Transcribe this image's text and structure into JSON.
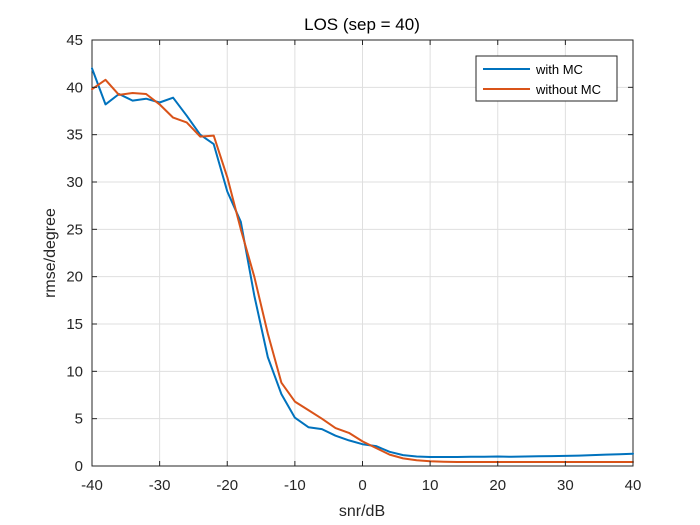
{
  "chart_data": {
    "type": "line",
    "title": "LOS (sep = 40)",
    "xlabel": "snr/dB",
    "ylabel": "rmse/degree",
    "xlim": [
      -40,
      40
    ],
    "ylim": [
      0,
      45
    ],
    "xticks": [
      -40,
      -30,
      -20,
      -10,
      0,
      10,
      20,
      30,
      40
    ],
    "yticks": [
      0,
      5,
      10,
      15,
      20,
      25,
      30,
      35,
      40,
      45
    ],
    "grid": true,
    "legend_position": "top-right",
    "series": [
      {
        "name": "with MC",
        "color": "#0072BD",
        "x": [
          -40,
          -38,
          -36,
          -34,
          -32,
          -30,
          -28,
          -26,
          -24,
          -22,
          -20,
          -18,
          -16,
          -14,
          -12,
          -10,
          -8,
          -6,
          -4,
          -2,
          0,
          2,
          4,
          6,
          8,
          10,
          12,
          14,
          16,
          18,
          20,
          22,
          24,
          26,
          28,
          30,
          32,
          34,
          36,
          38,
          40
        ],
        "values": [
          42.0,
          38.2,
          39.3,
          38.6,
          38.8,
          38.4,
          38.9,
          37.0,
          35.0,
          34.0,
          29.0,
          25.8,
          18.0,
          11.5,
          7.6,
          5.1,
          4.1,
          3.9,
          3.2,
          2.7,
          2.3,
          2.1,
          1.5,
          1.15,
          1.0,
          0.95,
          0.95,
          0.95,
          0.97,
          0.97,
          1.0,
          0.97,
          1.0,
          1.03,
          1.05,
          1.07,
          1.1,
          1.15,
          1.2,
          1.25,
          1.3
        ]
      },
      {
        "name": "without MC",
        "color": "#D95319",
        "x": [
          -40,
          -38,
          -36,
          -34,
          -32,
          -30,
          -28,
          -26,
          -24,
          -22,
          -20,
          -18,
          -16,
          -14,
          -12,
          -10,
          -8,
          -6,
          -4,
          -2,
          0,
          2,
          4,
          6,
          8,
          10,
          12,
          14,
          16,
          18,
          20,
          22,
          24,
          26,
          28,
          30,
          32,
          34,
          36,
          38,
          40
        ],
        "values": [
          39.8,
          40.8,
          39.2,
          39.4,
          39.3,
          38.2,
          36.8,
          36.3,
          34.8,
          34.9,
          30.5,
          25.0,
          20.0,
          14.0,
          8.8,
          6.8,
          5.9,
          5.0,
          4.0,
          3.5,
          2.6,
          1.9,
          1.2,
          0.8,
          0.6,
          0.5,
          0.45,
          0.42,
          0.42,
          0.42,
          0.42,
          0.42,
          0.42,
          0.42,
          0.42,
          0.42,
          0.42,
          0.42,
          0.42,
          0.42,
          0.42
        ]
      }
    ]
  }
}
